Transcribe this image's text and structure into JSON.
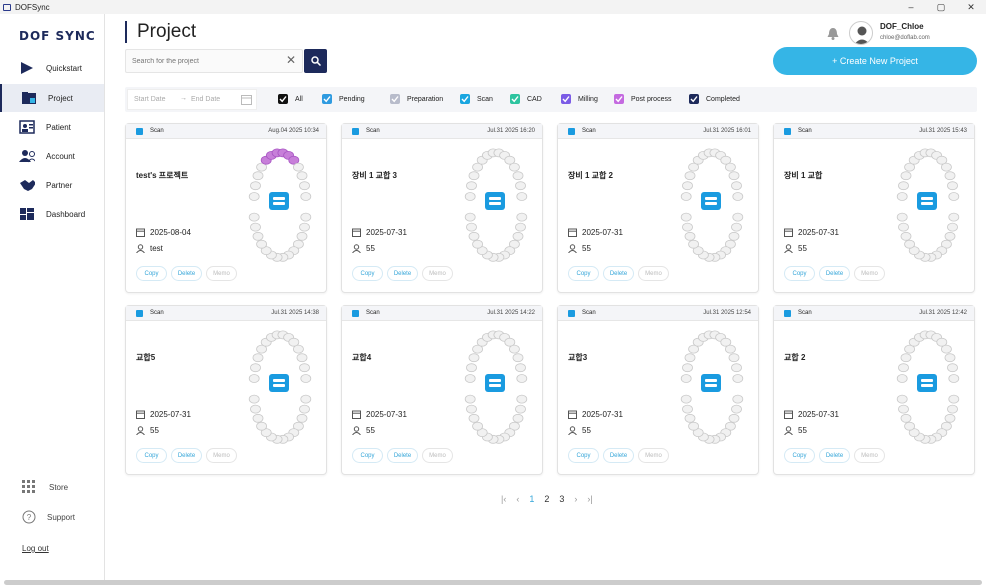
{
  "window": {
    "title": "DOFSync",
    "controls": [
      "–",
      "▢",
      "✕"
    ]
  },
  "sidebar": {
    "logo": "DOF SYNC",
    "items": [
      {
        "label": "Quickstart",
        "icon": "play-icon"
      },
      {
        "label": "Project",
        "icon": "project-folder-icon",
        "active": true
      },
      {
        "label": "Patient",
        "icon": "patient-icon"
      },
      {
        "label": "Account",
        "icon": "account-icon"
      },
      {
        "label": "Partner",
        "icon": "handshake-icon"
      },
      {
        "label": "Dashboard",
        "icon": "dashboard-icon"
      }
    ],
    "bottom": [
      {
        "label": "Store",
        "icon": "grid-icon"
      },
      {
        "label": "Support",
        "icon": "help-icon"
      }
    ],
    "logout": "Log out"
  },
  "header": {
    "title": "Project",
    "search": {
      "placeholder": "Search for the project",
      "value": ""
    },
    "user": {
      "name": "DOF_Chloe",
      "email": "chloe@doflab.com"
    },
    "create_label": "+ Create New Project"
  },
  "filters": {
    "start_date": "Start Date",
    "arrow": "→",
    "end_date": "End Date",
    "statuses": [
      {
        "label": "All",
        "color": "#111111"
      },
      {
        "label": "Pending",
        "color": "#2f9be0"
      },
      {
        "label": "Preparation",
        "color": "#b8bccb"
      },
      {
        "label": "Scan",
        "color": "#1aa6e0"
      },
      {
        "label": "CAD",
        "color": "#2ec4a0"
      },
      {
        "label": "Milling",
        "color": "#7b5ce6"
      },
      {
        "label": "Post process",
        "color": "#c46ae0"
      },
      {
        "label": "Completed",
        "color": "#1d2a5b"
      }
    ]
  },
  "projects": [
    {
      "status": "Scan",
      "timestamp": "Aug.04 2025 10:34",
      "name": "test's 프로젝트",
      "date": "2025-08-04",
      "owner": "test",
      "highlight": true
    },
    {
      "status": "Scan",
      "timestamp": "Jul.31 2025 16:20",
      "name": "장비 1 교합 3",
      "date": "2025-07-31",
      "owner": "55",
      "highlight": false
    },
    {
      "status": "Scan",
      "timestamp": "Jul.31 2025 16:01",
      "name": "장비 1 교합 2",
      "date": "2025-07-31",
      "owner": "55",
      "highlight": false
    },
    {
      "status": "Scan",
      "timestamp": "Jul.31 2025 15:43",
      "name": "장비 1 교합",
      "date": "2025-07-31",
      "owner": "55",
      "highlight": false
    },
    {
      "status": "Scan",
      "timestamp": "Jul.31 2025 14:38",
      "name": "교합5",
      "date": "2025-07-31",
      "owner": "55",
      "highlight": false
    },
    {
      "status": "Scan",
      "timestamp": "Jul.31 2025 14:22",
      "name": "교합4",
      "date": "2025-07-31",
      "owner": "55",
      "highlight": false
    },
    {
      "status": "Scan",
      "timestamp": "Jul.31 2025 12:54",
      "name": "교합3",
      "date": "2025-07-31",
      "owner": "55",
      "highlight": false
    },
    {
      "status": "Scan",
      "timestamp": "Jul.31 2025 12:42",
      "name": "교합 2",
      "date": "2025-07-31",
      "owner": "55",
      "highlight": false
    }
  ],
  "card_actions": {
    "copy": "Copy",
    "delete": "Delete",
    "memo": "Memo"
  },
  "pagination": {
    "pages": [
      "1",
      "2",
      "3"
    ],
    "current": "1",
    "first": "|‹",
    "prev": "‹",
    "next": "›",
    "last": "›|"
  }
}
